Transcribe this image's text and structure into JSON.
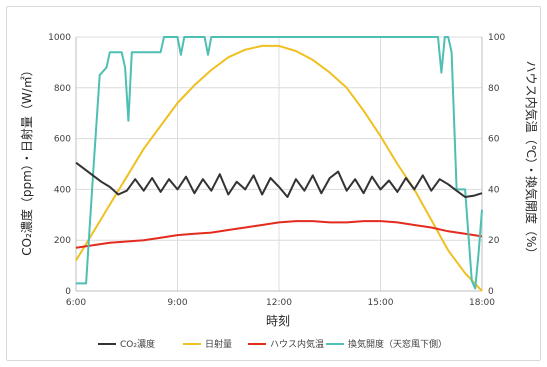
{
  "chart_data": {
    "type": "line",
    "xlabel": "時刻",
    "ylabel_left": "CO₂濃度（ppm）・日射量（W/㎡）",
    "ylabel_right": "ハウス内気温（℃）・換気開度（%）",
    "x_ticks": [
      "6:00",
      "9:00",
      "12:00",
      "15:00",
      "18:00"
    ],
    "x_range_hours": [
      6,
      18
    ],
    "y_left_ticks": [
      "0",
      "200",
      "400",
      "600",
      "800",
      "1000"
    ],
    "y_left_range": [
      0,
      1000
    ],
    "y_right_ticks": [
      "0",
      "20",
      "40",
      "60",
      "80",
      "100"
    ],
    "y_right_range": [
      0,
      100
    ],
    "grid": true,
    "legend_position": "bottom",
    "series": [
      {
        "name": "CO₂濃度",
        "axis": "left",
        "color": "#333333",
        "x": [
          6.0,
          6.25,
          6.5,
          6.75,
          7.0,
          7.25,
          7.5,
          7.75,
          8.0,
          8.25,
          8.5,
          8.75,
          9.0,
          9.25,
          9.5,
          9.75,
          10.0,
          10.25,
          10.5,
          10.75,
          11.0,
          11.25,
          11.5,
          11.75,
          12.0,
          12.25,
          12.5,
          12.75,
          13.0,
          13.25,
          13.5,
          13.75,
          14.0,
          14.25,
          14.5,
          14.75,
          15.0,
          15.25,
          15.5,
          15.75,
          16.0,
          16.25,
          16.5,
          16.75,
          17.0,
          17.25,
          17.5,
          17.75,
          18.0
        ],
        "y": [
          505,
          480,
          455,
          430,
          410,
          380,
          395,
          440,
          395,
          445,
          390,
          440,
          400,
          450,
          385,
          440,
          395,
          460,
          380,
          430,
          400,
          455,
          380,
          445,
          410,
          370,
          440,
          395,
          455,
          385,
          445,
          470,
          395,
          440,
          385,
          450,
          400,
          435,
          390,
          445,
          400,
          455,
          395,
          440,
          420,
          395,
          370,
          375,
          385
        ]
      },
      {
        "name": "日射量",
        "axis": "left",
        "color": "#f0c020",
        "x": [
          6.0,
          6.5,
          7.0,
          7.5,
          8.0,
          8.5,
          9.0,
          9.5,
          10.0,
          10.5,
          11.0,
          11.5,
          12.0,
          12.5,
          13.0,
          13.5,
          14.0,
          14.5,
          15.0,
          15.5,
          16.0,
          16.5,
          17.0,
          17.5,
          18.0
        ],
        "y": [
          120,
          230,
          340,
          450,
          560,
          650,
          740,
          810,
          870,
          920,
          950,
          965,
          965,
          945,
          910,
          860,
          800,
          710,
          610,
          500,
          400,
          280,
          160,
          70,
          0
        ]
      },
      {
        "name": "ハウス内気温",
        "axis": "right",
        "color": "#e32b1e",
        "x": [
          6.0,
          6.5,
          7.0,
          7.5,
          8.0,
          8.5,
          9.0,
          9.5,
          10.0,
          10.5,
          11.0,
          11.5,
          12.0,
          12.5,
          13.0,
          13.5,
          14.0,
          14.5,
          15.0,
          15.5,
          16.0,
          16.5,
          17.0,
          17.5,
          18.0
        ],
        "y": [
          17,
          18,
          19,
          19.5,
          20,
          21,
          22,
          22.5,
          23,
          24,
          25,
          26,
          27,
          27.5,
          27.5,
          27,
          27,
          27.5,
          27.5,
          27,
          26,
          25,
          23.5,
          22.5,
          21.5
        ]
      },
      {
        "name": "換気開度（天窓風下側）",
        "axis": "right",
        "color": "#4dbfb3",
        "x": [
          6.0,
          6.3,
          6.5,
          6.7,
          6.9,
          7.0,
          7.1,
          7.25,
          7.35,
          7.45,
          7.55,
          7.65,
          7.75,
          7.85,
          8.0,
          8.3,
          8.5,
          8.6,
          8.7,
          8.8,
          9.0,
          9.1,
          9.2,
          9.3,
          9.5,
          9.8,
          9.9,
          10.0,
          10.1,
          10.3,
          11.0,
          12.0,
          13.0,
          14.0,
          15.0,
          16.0,
          16.5,
          16.7,
          16.8,
          16.9,
          17.0,
          17.1,
          17.25,
          17.5,
          17.7,
          17.8,
          17.9,
          18.0
        ],
        "y": [
          3,
          3,
          45,
          85,
          88,
          94,
          94,
          94,
          94,
          88,
          67,
          94,
          94,
          94,
          94,
          94,
          94,
          100,
          100,
          100,
          100,
          93,
          100,
          100,
          100,
          100,
          93,
          100,
          100,
          100,
          100,
          100,
          100,
          100,
          100,
          100,
          100,
          100,
          86,
          100,
          100,
          94,
          40,
          40,
          4,
          1,
          15,
          32
        ]
      }
    ]
  }
}
